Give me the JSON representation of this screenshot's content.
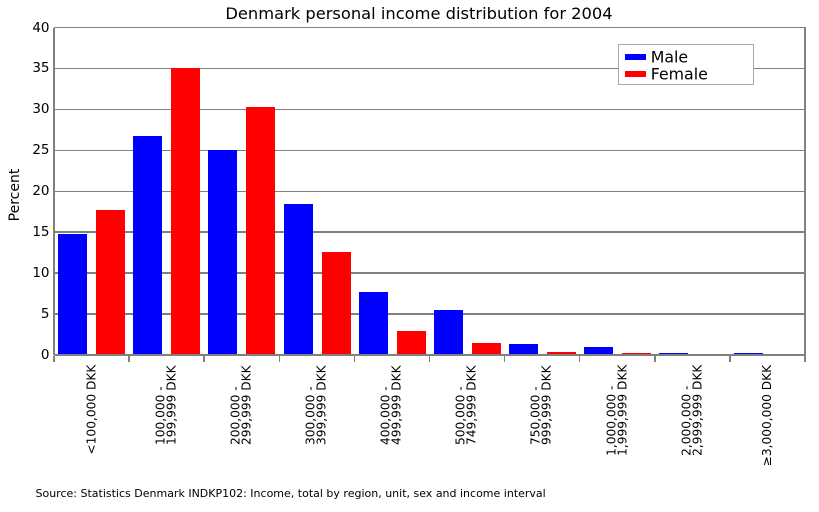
{
  "figure": {
    "title": "Denmark personal income distribution for 2004",
    "source_note": "Source: Statistics Denmark INDKP102: Income, total by region, unit, sex and income interval"
  },
  "chart_data": {
    "type": "bar",
    "title": "Denmark personal income distribution for 2004",
    "xlabel": "",
    "ylabel": "Percent",
    "ylim": [
      0,
      40
    ],
    "ytick_step": 5,
    "ytick_labels": [
      "0",
      "5",
      "10",
      "15",
      "20",
      "25",
      "30",
      "35",
      "40"
    ],
    "grid": true,
    "legend_position": "top-right",
    "categories": [
      "<100,000 DKK",
      "100,000 - 199,999 DKK",
      "200,000 - 299,999 DKK",
      "300,000 - 399,999 DKK",
      "400,000 - 499,999 DKK",
      "500,000 - 749,999 DKK",
      "750,000 - 999,999 DKK",
      "1,000,000 - 1,999,999 DKK",
      "2,000,000 - 2,999,999 DKK",
      "≥3,000,000 DKK"
    ],
    "category_tick_lines": [
      [
        "<100,000 DKK"
      ],
      [
        "100,000 -",
        "199,999 DKK"
      ],
      [
        "200,000 -",
        "299,999 DKK"
      ],
      [
        "300,000 -",
        "399,999 DKK"
      ],
      [
        "400,000 -",
        "499,999 DKK"
      ],
      [
        "500,000 -",
        "749,999 DKK"
      ],
      [
        "750,000 -",
        "999,999 DKK"
      ],
      [
        "1,000,000 -",
        "1,999,999 DKK"
      ],
      [
        "2,000,000 -",
        "2,999,999 DKK"
      ],
      [
        "≥3,000,000 DKK"
      ]
    ],
    "series": [
      {
        "name": "Male",
        "color": "#0000ff",
        "values": [
          14.7,
          26.6,
          25.0,
          18.4,
          7.55,
          5.45,
          1.3,
          0.9,
          0.2,
          0.15
        ]
      },
      {
        "name": "Female",
        "color": "#ff0000",
        "values": [
          17.65,
          35.0,
          30.2,
          12.5,
          2.9,
          1.4,
          0.25,
          0.1,
          0.03,
          0.02
        ]
      }
    ],
    "source_note": "Source: Statistics Denmark INDKP102: Income, total by region, unit, sex and income interval"
  },
  "colors": {
    "male": "#0000ff",
    "female": "#ff0000",
    "grid": "#808080",
    "text": "#000000",
    "background": "#ffffff",
    "legend_border": "#ababab"
  }
}
